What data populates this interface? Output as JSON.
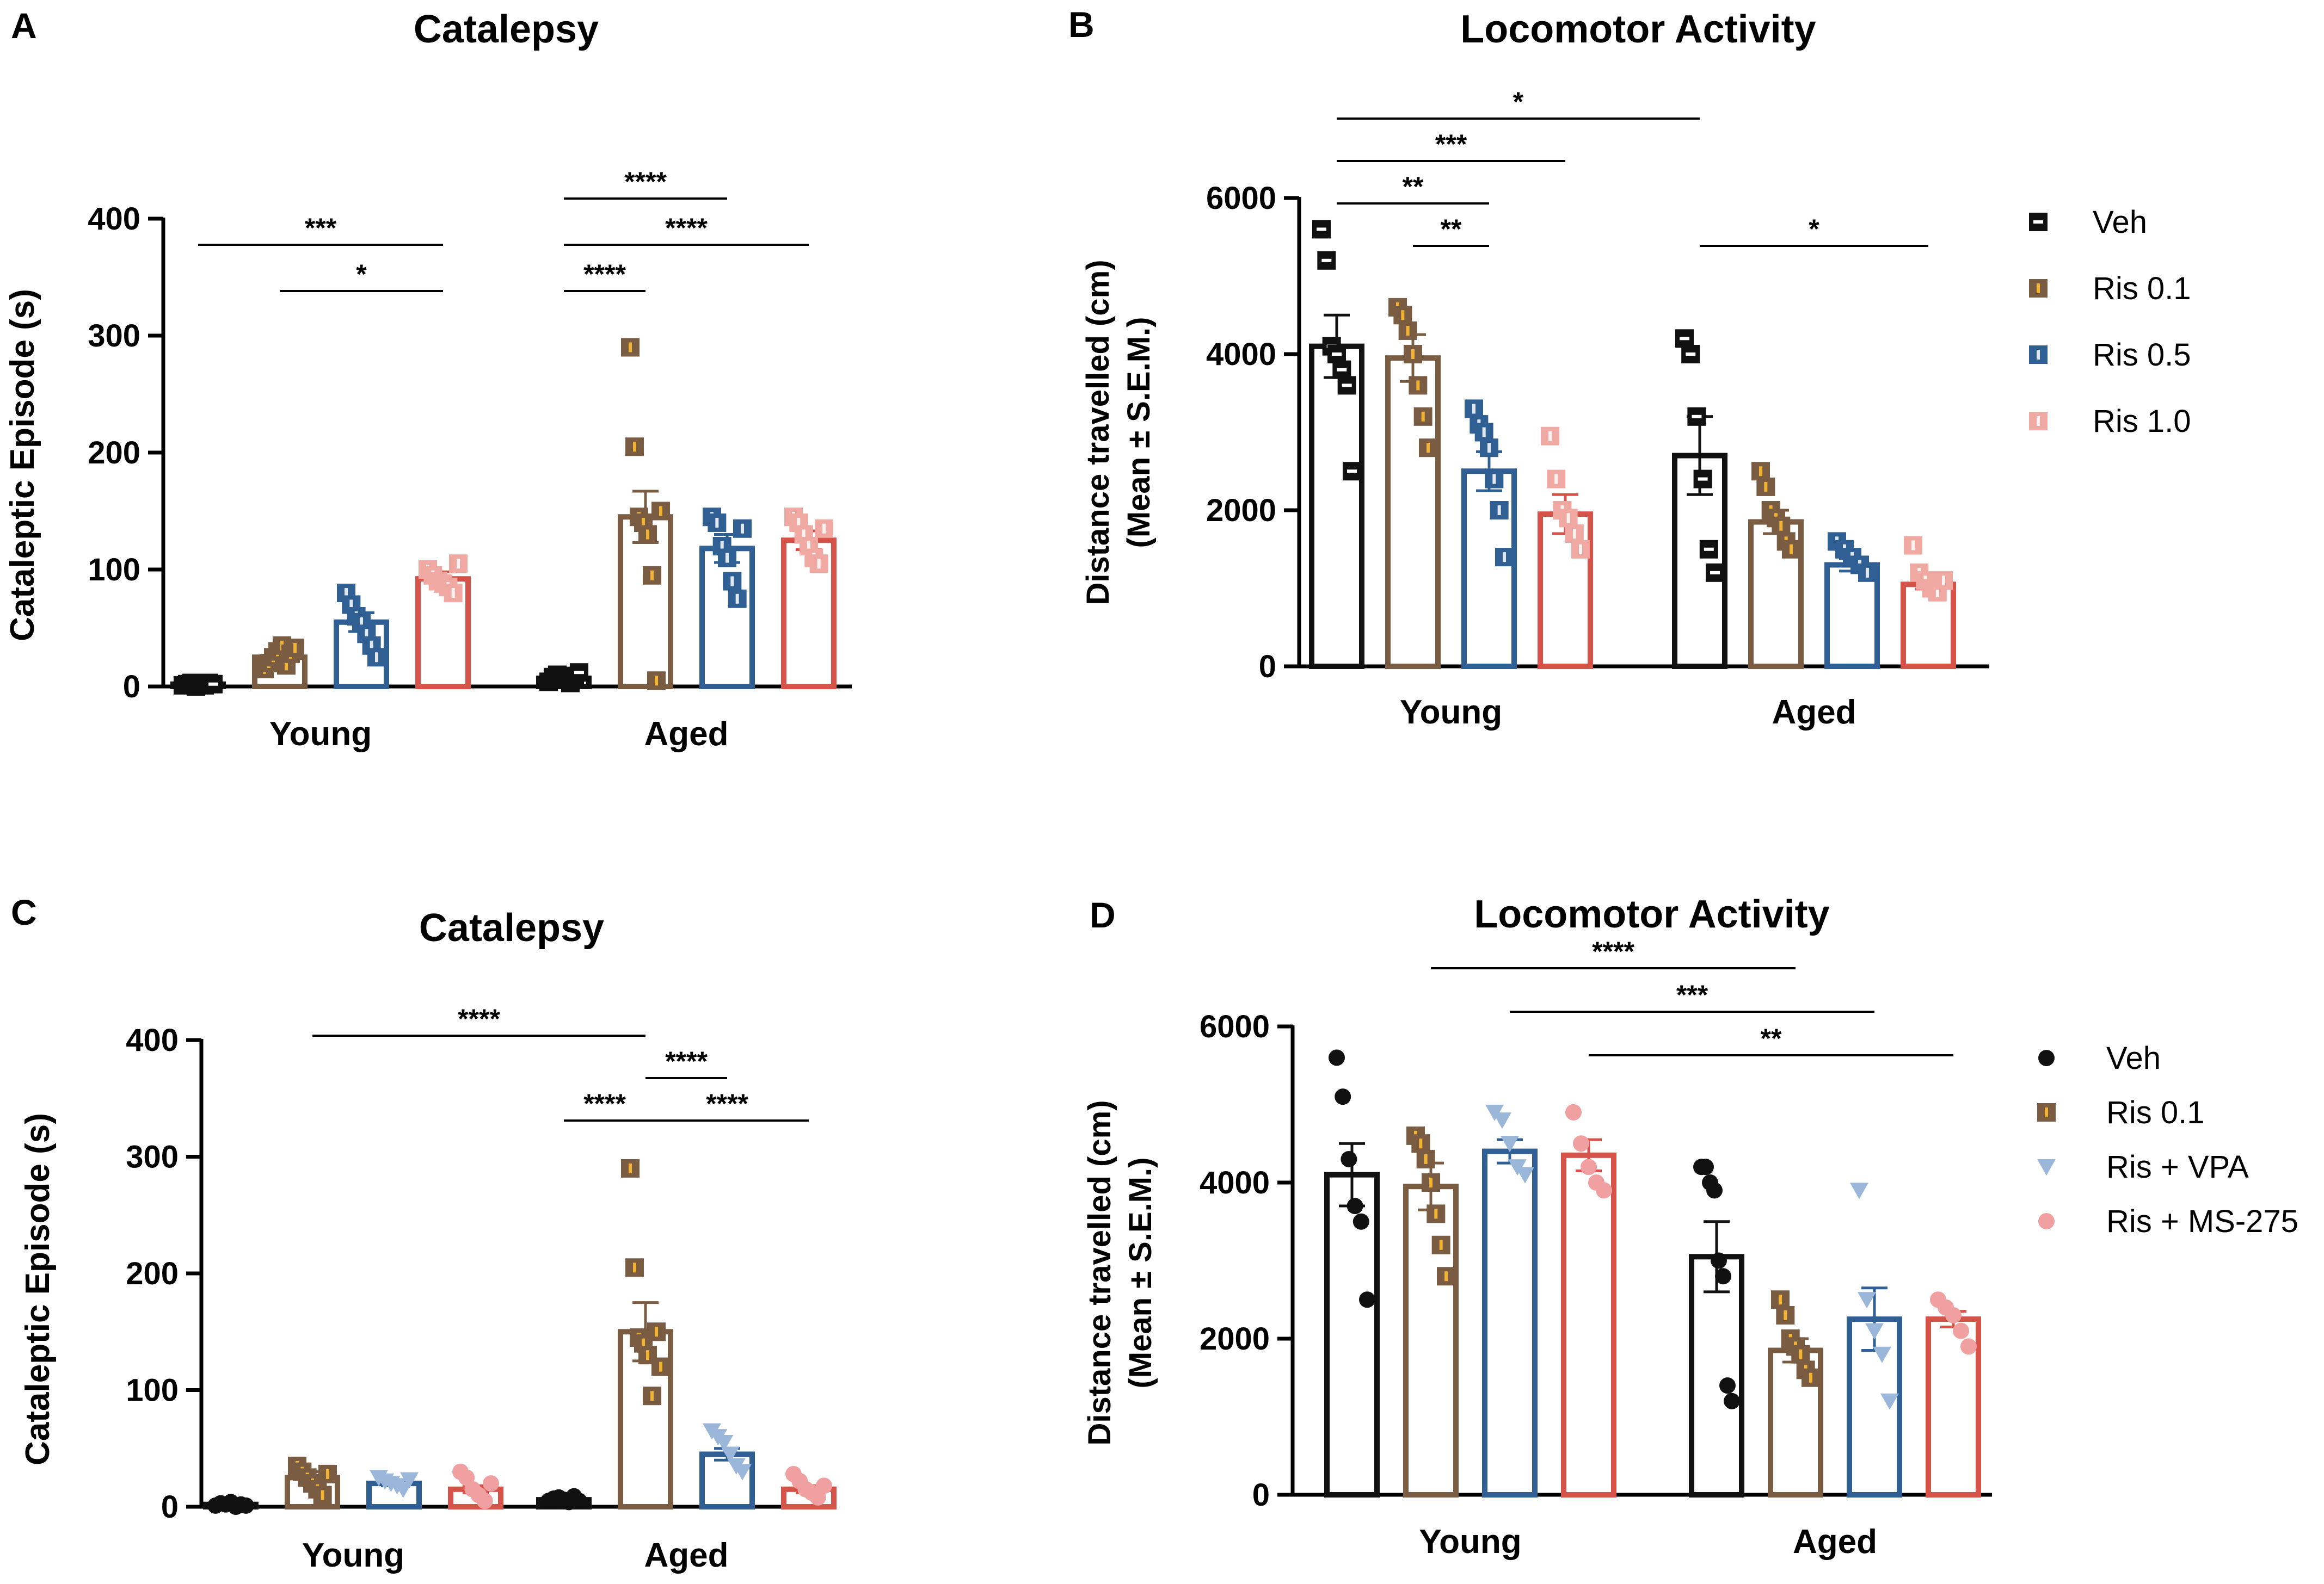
{
  "figure": {
    "colors": {
      "Veh": "#111111",
      "Ris 0.1": "#7a5c43",
      "Ris 0.5": "#2f5f93",
      "Ris 1.0": "#f0a8a2",
      "Ris 1.0 bar": "#d6534a",
      "Ris + VPA": "#9ab7d9",
      "Ris + MS-275": "#f0a0a0"
    }
  },
  "chart_data": [
    {
      "panel": "A",
      "type": "bar",
      "title": "Catalepsy",
      "xlabel": "",
      "ylabel": "Cataleptic Episode (s)",
      "ylim": [
        0,
        400
      ],
      "yticks": [
        0,
        100,
        200,
        300,
        400
      ],
      "grid": false,
      "legend": "none",
      "categories": [
        "Young",
        "Aged"
      ],
      "series": [
        {
          "name": "Veh",
          "marker": "square-veh",
          "values": [
            2,
            7
          ],
          "sem": [
            1,
            3
          ],
          "points": [
            [
              1,
              2,
              3,
              0,
              2,
              1,
              3,
              2
            ],
            [
              4,
              8,
              10,
              6,
              9,
              3,
              7,
              12
            ]
          ]
        },
        {
          "name": "Ris 0.1",
          "marker": "square-ris",
          "values": [
            25,
            145
          ],
          "sem": [
            4,
            22
          ],
          "points": [
            [
              15,
              20,
              25,
              30,
              35,
              18,
              28,
              33
            ],
            [
              290,
              205,
              145,
              140,
              130,
              95,
              5,
              150
            ]
          ]
        },
        {
          "name": "Ris 0.5",
          "marker": "square-solid",
          "values": [
            55,
            118
          ],
          "sem": [
            8,
            12
          ],
          "points": [
            [
              80,
              70,
              60,
              55,
              45,
              35,
              25
            ],
            [
              145,
              140,
              120,
              110,
              90,
              75,
              135
            ]
          ]
        },
        {
          "name": "Ris 1.0",
          "marker": "square-solid",
          "values": [
            92,
            125
          ],
          "sem": [
            6,
            8
          ],
          "points": [
            [
              100,
              95,
              90,
              88,
              85,
              80,
              105
            ],
            [
              145,
              140,
              130,
              120,
              110,
              105,
              135
            ]
          ]
        }
      ],
      "significance": [
        {
          "from": [
            0,
            0
          ],
          "to": [
            0,
            3
          ],
          "label": "***",
          "level": 1
        },
        {
          "from": [
            0,
            1
          ],
          "to": [
            0,
            3
          ],
          "label": "*",
          "level": 0
        },
        {
          "from": [
            1,
            0
          ],
          "to": [
            1,
            2
          ],
          "label": "****",
          "level": 2
        },
        {
          "from": [
            1,
            0
          ],
          "to": [
            1,
            3
          ],
          "label": "****",
          "level": 1
        },
        {
          "from": [
            1,
            0
          ],
          "to": [
            1,
            1
          ],
          "label": "****",
          "level": 0
        }
      ]
    },
    {
      "panel": "B",
      "type": "bar",
      "title": "Locomotor Activity",
      "xlabel": "",
      "ylabel": "Distance travelled (cm)",
      "ylabel2": "(Mean ± S.E.M.)",
      "ylim": [
        0,
        6000
      ],
      "yticks": [
        0,
        2000,
        4000,
        6000
      ],
      "grid": false,
      "legend": "right",
      "categories": [
        "Young",
        "Aged"
      ],
      "series": [
        {
          "name": "Veh",
          "marker": "square-veh",
          "values": [
            4100,
            2700
          ],
          "sem": [
            400,
            500
          ],
          "points": [
            [
              5600,
              5200,
              4100,
              4000,
              3800,
              3600,
              2500
            ],
            [
              4200,
              4000,
              3200,
              2400,
              1500,
              1200
            ]
          ]
        },
        {
          "name": "Ris 0.1",
          "marker": "square-ris",
          "values": [
            3950,
            1850
          ],
          "sem": [
            300,
            150
          ],
          "points": [
            [
              4600,
              4500,
              4300,
              4000,
              3600,
              3200,
              2800
            ],
            [
              2500,
              2300,
              2000,
              1900,
              1800,
              1600,
              1500
            ]
          ]
        },
        {
          "name": "Ris 0.5",
          "marker": "square-solid",
          "values": [
            2500,
            1300
          ],
          "sem": [
            250,
            80
          ],
          "points": [
            [
              3300,
              3100,
              3000,
              2800,
              2400,
              2000,
              1400
            ],
            [
              1600,
              1500,
              1400,
              1300,
              1200
            ]
          ]
        },
        {
          "name": "Ris 1.0",
          "marker": "square-solid",
          "values": [
            1950,
            1050
          ],
          "sem": [
            250,
            60
          ],
          "points": [
            [
              2950,
              2400,
              2000,
              1900,
              1700,
              1500
            ],
            [
              1550,
              1200,
              1100,
              1000,
              950,
              1100
            ]
          ]
        }
      ],
      "legend_items": [
        "Veh",
        "Ris  0.1",
        "Ris 0.5",
        "Ris 1.0"
      ],
      "significance": [
        {
          "from": [
            0,
            0
          ],
          "to": [
            1,
            0
          ],
          "label": "*",
          "level": 3
        },
        {
          "from": [
            0,
            0
          ],
          "to": [
            0,
            3
          ],
          "label": "***",
          "level": 2
        },
        {
          "from": [
            0,
            0
          ],
          "to": [
            0,
            2
          ],
          "label": "**",
          "level": 1
        },
        {
          "from": [
            0,
            1
          ],
          "to": [
            0,
            2
          ],
          "label": "**",
          "level": 0
        },
        {
          "from": [
            1,
            0
          ],
          "to": [
            1,
            3
          ],
          "label": "*",
          "level": 0
        }
      ]
    },
    {
      "panel": "C",
      "type": "bar",
      "title": "Catalepsy",
      "xlabel": "",
      "ylabel": "Cataleptic Episode (s)",
      "ylim": [
        0,
        400
      ],
      "yticks": [
        0,
        100,
        200,
        300,
        400
      ],
      "grid": false,
      "legend": "none",
      "categories": [
        "Young",
        "Aged"
      ],
      "series": [
        {
          "name": "Veh",
          "marker": "circle",
          "values": [
            2,
            6
          ],
          "sem": [
            1,
            1
          ],
          "points": [
            [
              1,
              3,
              2,
              4,
              0,
              2,
              1
            ],
            [
              5,
              7,
              8,
              6,
              4,
              9,
              5
            ]
          ]
        },
        {
          "name": "Ris 0.1",
          "marker": "square-ris",
          "values": [
            25,
            150
          ],
          "sem": [
            5,
            25
          ],
          "points": [
            [
              35,
              30,
              25,
              20,
              15,
              10,
              28
            ],
            [
              290,
              205,
              145,
              140,
              130,
              95,
              150,
              120
            ]
          ]
        },
        {
          "name": "Ris + VPA",
          "marker": "triangle",
          "values": [
            20,
            45
          ],
          "sem": [
            2,
            5
          ],
          "points": [
            [
              25,
              22,
              20,
              18,
              15,
              23
            ],
            [
              65,
              60,
              55,
              45,
              35,
              30
            ]
          ]
        },
        {
          "name": "Ris + MS-275",
          "marker": "circle",
          "values": [
            15,
            15
          ],
          "sem": [
            3,
            3
          ],
          "points": [
            [
              30,
              25,
              15,
              10,
              5,
              20
            ],
            [
              28,
              22,
              15,
              12,
              8,
              18
            ]
          ]
        }
      ],
      "significance": [
        {
          "from": [
            0,
            1
          ],
          "to": [
            1,
            1
          ],
          "label": "****",
          "level": 2
        },
        {
          "from": [
            1,
            1
          ],
          "to": [
            1,
            2
          ],
          "label": "****",
          "level": 1
        },
        {
          "from": [
            1,
            0
          ],
          "to": [
            1,
            1
          ],
          "label": "****",
          "level": 0
        },
        {
          "from": [
            1,
            1
          ],
          "to": [
            1,
            3
          ],
          "label": "****",
          "level": 0
        }
      ]
    },
    {
      "panel": "D",
      "type": "bar",
      "title": "Locomotor Activity",
      "xlabel": "",
      "ylabel": "Distance travelled (cm)",
      "ylabel2": "(Mean ± S.E.M.)",
      "ylim": [
        0,
        6000
      ],
      "yticks": [
        0,
        2000,
        4000,
        6000
      ],
      "grid": false,
      "legend": "right",
      "categories": [
        "Young",
        "Aged"
      ],
      "series": [
        {
          "name": "Veh",
          "marker": "circle",
          "values": [
            4100,
            3050
          ],
          "sem": [
            400,
            450
          ],
          "points": [
            [
              5600,
              5100,
              4300,
              3700,
              3500,
              2500
            ],
            [
              4200,
              4200,
              4000,
              3900,
              3000,
              2800,
              1400,
              1200
            ]
          ]
        },
        {
          "name": "Ris 0.1",
          "marker": "square-ris",
          "values": [
            3950,
            1850
          ],
          "sem": [
            300,
            150
          ],
          "points": [
            [
              4600,
              4500,
              4300,
              4000,
              3600,
              3200,
              2800
            ],
            [
              2500,
              2300,
              2000,
              1900,
              1800,
              1600,
              1500
            ]
          ]
        },
        {
          "name": "Ris + VPA",
          "marker": "triangle",
          "values": [
            4400,
            2250
          ],
          "sem": [
            150,
            400
          ],
          "points": [
            [
              4900,
              4800,
              4500,
              4200,
              4100
            ],
            [
              3900,
              2500,
              2100,
              1800,
              1200
            ]
          ]
        },
        {
          "name": "Ris + MS-275",
          "marker": "circle",
          "values": [
            4350,
            2250
          ],
          "sem": [
            200,
            100
          ],
          "points": [
            [
              4900,
              4500,
              4200,
              4000,
              3900
            ],
            [
              2500,
              2400,
              2300,
              2100,
              1900
            ]
          ]
        }
      ],
      "legend_items": [
        "Veh",
        "Ris  0.1",
        "Ris + VPA",
        "Ris + MS-275"
      ],
      "significance": [
        {
          "from": [
            0,
            1
          ],
          "to": [
            1,
            1
          ],
          "label": "****",
          "level": 2
        },
        {
          "from": [
            0,
            2
          ],
          "to": [
            1,
            2
          ],
          "label": "***",
          "level": 1
        },
        {
          "from": [
            0,
            3
          ],
          "to": [
            1,
            3
          ],
          "label": "**",
          "level": 0
        }
      ]
    }
  ]
}
